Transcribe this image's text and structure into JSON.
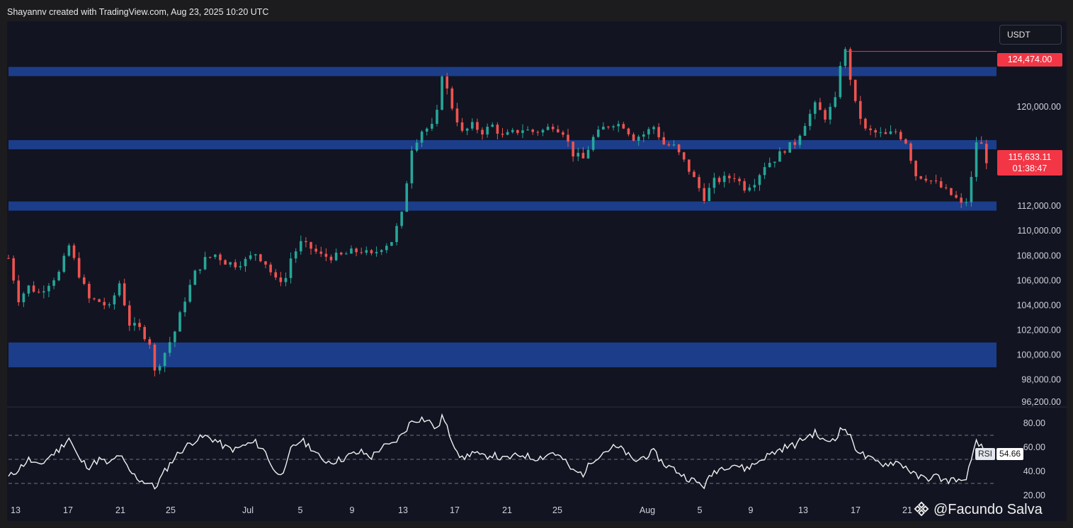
{
  "header": {
    "caption": "Shayannv created with TradingView.com, Aug 23, 2025 10:20 UTC"
  },
  "currency_button": {
    "label": "USDT"
  },
  "watermark": {
    "text": "@Facundo Salva"
  },
  "chart_data": [
    {
      "type": "candlestick",
      "title": "",
      "ylim": [
        96200,
        125800
      ],
      "y_ticks": [
        "120,000.00",
        "112,000.00",
        "110,000.00",
        "108,000.00",
        "106,000.00",
        "104,000.00",
        "102,000.00",
        "100,000.00",
        "98,000.00",
        "96,200.00"
      ],
      "x_ticks": [
        "13",
        "17",
        "21",
        "25",
        "Jul",
        "5",
        "9",
        "13",
        "17",
        "21",
        "25",
        "Aug",
        "5",
        "9",
        "13",
        "17",
        "21"
      ],
      "x_range": [
        "Jun 13",
        "Aug 23"
      ],
      "price_path": [
        [
          0,
          107800
        ],
        [
          2,
          104500
        ],
        [
          4,
          105500
        ],
        [
          6,
          105000
        ],
        [
          8,
          105800
        ],
        [
          10,
          106600
        ],
        [
          12,
          108800
        ],
        [
          14,
          106500
        ],
        [
          16,
          104500
        ],
        [
          18,
          104300
        ],
        [
          20,
          103800
        ],
        [
          22,
          105800
        ],
        [
          24,
          102500
        ],
        [
          26,
          102100
        ],
        [
          28,
          101000
        ],
        [
          29,
          98600
        ],
        [
          31,
          100200
        ],
        [
          33,
          101900
        ],
        [
          35,
          104500
        ],
        [
          37,
          106600
        ],
        [
          39,
          107700
        ],
        [
          41,
          108100
        ],
        [
          43,
          107500
        ],
        [
          45,
          107300
        ],
        [
          47,
          107600
        ],
        [
          49,
          108200
        ],
        [
          51,
          107400
        ],
        [
          53,
          106000
        ],
        [
          55,
          106200
        ],
        [
          56,
          107800
        ],
        [
          58,
          109000
        ],
        [
          60,
          108600
        ],
        [
          62,
          108000
        ],
        [
          64,
          107900
        ],
        [
          66,
          108000
        ],
        [
          68,
          108300
        ],
        [
          70,
          108400
        ],
        [
          72,
          108000
        ],
        [
          74,
          108700
        ],
        [
          76,
          109200
        ],
        [
          78,
          111300
        ],
        [
          80,
          116700
        ],
        [
          82,
          118100
        ],
        [
          84,
          118400
        ],
        [
          85,
          119500
        ],
        [
          86,
          122700
        ],
        [
          88,
          120000
        ],
        [
          90,
          117900
        ],
        [
          92,
          118500
        ],
        [
          94,
          118000
        ],
        [
          96,
          118500
        ],
        [
          98,
          117600
        ],
        [
          100,
          117900
        ],
        [
          102,
          118200
        ],
        [
          104,
          118000
        ],
        [
          106,
          118100
        ],
        [
          108,
          118500
        ],
        [
          110,
          118000
        ],
        [
          112,
          116200
        ],
        [
          114,
          115800
        ],
        [
          116,
          117500
        ],
        [
          118,
          118300
        ],
        [
          120,
          118700
        ],
        [
          122,
          118500
        ],
        [
          124,
          117500
        ],
        [
          126,
          117800
        ],
        [
          128,
          118400
        ],
        [
          130,
          117000
        ],
        [
          132,
          116800
        ],
        [
          134,
          115600
        ],
        [
          136,
          114200
        ],
        [
          138,
          112700
        ],
        [
          140,
          114000
        ],
        [
          142,
          114200
        ],
        [
          144,
          114400
        ],
        [
          146,
          113500
        ],
        [
          148,
          114000
        ],
        [
          150,
          115300
        ],
        [
          152,
          115800
        ],
        [
          154,
          116600
        ],
        [
          156,
          117100
        ],
        [
          158,
          118700
        ],
        [
          160,
          120100
        ],
        [
          162,
          119200
        ],
        [
          164,
          120500
        ],
        [
          165,
          123500
        ],
        [
          166,
          124474
        ],
        [
          168,
          120200
        ],
        [
          170,
          118100
        ],
        [
          172,
          117900
        ],
        [
          174,
          117700
        ],
        [
          176,
          118000
        ],
        [
          178,
          117200
        ],
        [
          180,
          114500
        ],
        [
          182,
          114300
        ],
        [
          184,
          113800
        ],
        [
          186,
          113200
        ],
        [
          188,
          112600
        ],
        [
          189,
          112100
        ],
        [
          190,
          112400
        ],
        [
          191,
          114200
        ],
        [
          192,
          117200
        ],
        [
          193,
          116900
        ],
        [
          194,
          115700
        ]
      ],
      "last_price": "115,633.11",
      "countdown": "01:38:47",
      "high_label": "124,474.00",
      "zones": [
        {
          "from": 122500,
          "to": 123200
        },
        {
          "from": 116700,
          "to": 117200
        },
        {
          "from": 111700,
          "to": 112300
        },
        {
          "from": 99000,
          "to": 101000
        }
      ]
    },
    {
      "type": "line",
      "indicator": "RSI",
      "ylim": [
        15,
        88
      ],
      "y_ticks": [
        "80.00",
        "60.00",
        "40.00",
        "20.00"
      ],
      "reference_lines": [
        70,
        50,
        30
      ],
      "series": [
        {
          "name": "RSI",
          "current": "54.66",
          "points": [
            [
              0,
              35
            ],
            [
              2,
              42
            ],
            [
              4,
              50
            ],
            [
              6,
              44
            ],
            [
              8,
              52
            ],
            [
              10,
              58
            ],
            [
              12,
              68
            ],
            [
              14,
              50
            ],
            [
              16,
              44
            ],
            [
              18,
              50
            ],
            [
              20,
              46
            ],
            [
              22,
              54
            ],
            [
              24,
              40
            ],
            [
              26,
              33
            ],
            [
              28,
              30
            ],
            [
              29,
              26
            ],
            [
              31,
              40
            ],
            [
              33,
              52
            ],
            [
              35,
              60
            ],
            [
              37,
              66
            ],
            [
              39,
              69
            ],
            [
              41,
              66
            ],
            [
              43,
              60
            ],
            [
              45,
              58
            ],
            [
              47,
              62
            ],
            [
              49,
              64
            ],
            [
              51,
              56
            ],
            [
              53,
              38
            ],
            [
              55,
              42
            ],
            [
              56,
              58
            ],
            [
              58,
              66
            ],
            [
              60,
              60
            ],
            [
              62,
              50
            ],
            [
              64,
              48
            ],
            [
              66,
              50
            ],
            [
              68,
              54
            ],
            [
              70,
              56
            ],
            [
              72,
              52
            ],
            [
              74,
              60
            ],
            [
              76,
              62
            ],
            [
              78,
              70
            ],
            [
              80,
              82
            ],
            [
              82,
              84
            ],
            [
              84,
              80
            ],
            [
              85,
              74
            ],
            [
              86,
              86
            ],
            [
              88,
              66
            ],
            [
              90,
              50
            ],
            [
              92,
              56
            ],
            [
              94,
              52
            ],
            [
              96,
              54
            ],
            [
              98,
              50
            ],
            [
              100,
              52
            ],
            [
              102,
              54
            ],
            [
              104,
              51
            ],
            [
              106,
              52
            ],
            [
              108,
              56
            ],
            [
              110,
              50
            ],
            [
              112,
              40
            ],
            [
              114,
              38
            ],
            [
              116,
              50
            ],
            [
              118,
              56
            ],
            [
              120,
              60
            ],
            [
              122,
              58
            ],
            [
              124,
              48
            ],
            [
              126,
              52
            ],
            [
              128,
              56
            ],
            [
              130,
              46
            ],
            [
              132,
              42
            ],
            [
              134,
              36
            ],
            [
              136,
              32
            ],
            [
              138,
              28
            ],
            [
              140,
              40
            ],
            [
              142,
              44
            ],
            [
              144,
              46
            ],
            [
              146,
              42
            ],
            [
              148,
              46
            ],
            [
              150,
              52
            ],
            [
              152,
              56
            ],
            [
              154,
              60
            ],
            [
              156,
              62
            ],
            [
              158,
              68
            ],
            [
              160,
              72
            ],
            [
              162,
              64
            ],
            [
              164,
              68
            ],
            [
              165,
              74
            ],
            [
              166,
              76
            ],
            [
              168,
              60
            ],
            [
              170,
              52
            ],
            [
              172,
              48
            ],
            [
              174,
              46
            ],
            [
              176,
              48
            ],
            [
              178,
              44
            ],
            [
              180,
              36
            ],
            [
              182,
              34
            ],
            [
              184,
              36
            ],
            [
              186,
              32
            ],
            [
              188,
              34
            ],
            [
              189,
              30
            ],
            [
              190,
              36
            ],
            [
              191,
              48
            ],
            [
              192,
              64
            ],
            [
              193,
              60
            ],
            [
              194,
              55
            ]
          ]
        }
      ]
    }
  ]
}
